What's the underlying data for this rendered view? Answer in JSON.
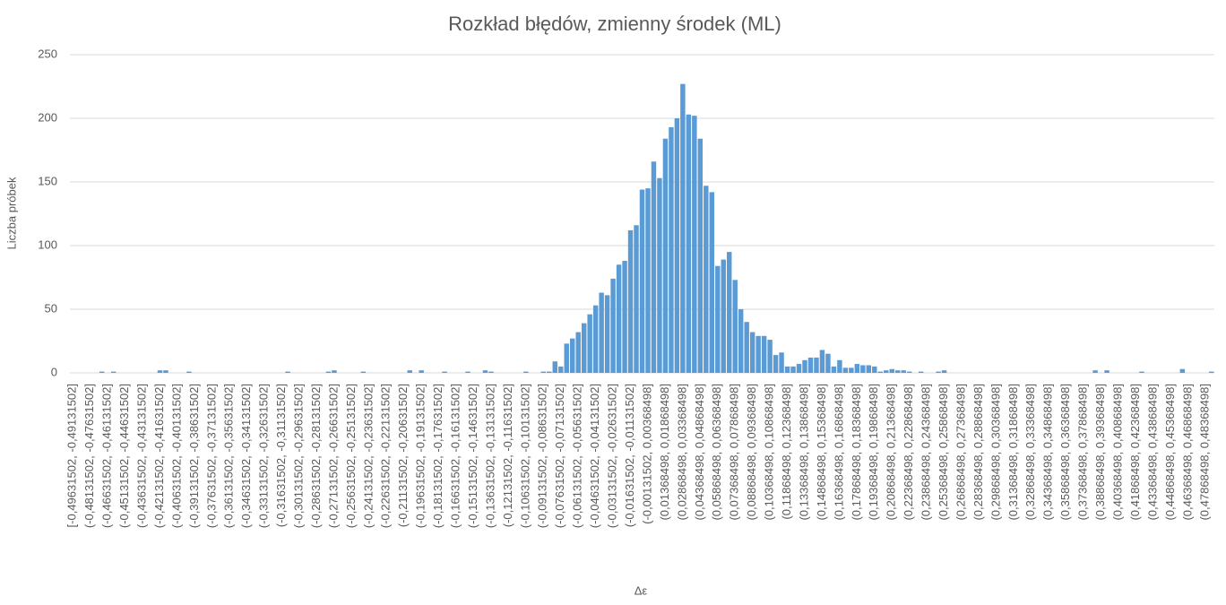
{
  "chart_data": {
    "type": "bar",
    "title": "Rozkład błędów, zmienny środek (ML)",
    "x_label": "Δε",
    "y_label": "Liczba próbek",
    "color": "#5b9bd5",
    "grid": true,
    "ylim": [
      0,
      250
    ],
    "yticks": [
      0,
      50,
      100,
      150,
      200,
      250
    ],
    "categories": [
      "[-0,49631502, -0,49131502]",
      null,
      null,
      "(-0,48131502, -0,47631502]",
      null,
      null,
      "(-0,46631502, -0,46131502]",
      null,
      null,
      "(-0,45131502, -0,44631502]",
      null,
      null,
      "(-0,43631502, -0,43131502]",
      null,
      null,
      "(-0,42131502, -0,41631502]",
      null,
      null,
      "(-0,40631502, -0,40131502]",
      null,
      null,
      "(-0,39131502, -0,38631502]",
      null,
      null,
      "(-0,37631502, -0,37131502]",
      null,
      null,
      "(-0,36131502, -0,35631502]",
      null,
      null,
      "(-0,34631502, -0,34131502]",
      null,
      null,
      "(-0,33131502, -0,32631502]",
      null,
      null,
      "(-0,31631502, -0,31131502]",
      null,
      null,
      "(-0,30131502, -0,29631502]",
      null,
      null,
      "(-0,28631502, -0,28131502]",
      null,
      null,
      "(-0,27131502, -0,26631502]",
      null,
      null,
      "(-0,25631502, -0,25131502]",
      null,
      null,
      "(-0,24131502, -0,23631502]",
      null,
      null,
      "(-0,22631502, -0,22131502]",
      null,
      null,
      "(-0,21131502, -0,20631502]",
      null,
      null,
      "(-0,19631502, -0,19131502]",
      null,
      null,
      "(-0,18131502, -0,17631502]",
      null,
      null,
      "(-0,16631502, -0,16131502]",
      null,
      null,
      "(-0,15131502, -0,14631502]",
      null,
      null,
      "(-0,13631502, -0,13131502]",
      null,
      null,
      "(-0,12131502, -0,11631502]",
      null,
      null,
      "(-0,10631502, -0,10131502]",
      null,
      null,
      "(-0,09131502, -0,08631502]",
      null,
      null,
      "(-0,07631502, -0,07131502]",
      null,
      null,
      "(-0,06131502, -0,05631502]",
      null,
      null,
      "(-0,04631502, -0,04131502]",
      null,
      null,
      "(-0,03131502, -0,02631502]",
      null,
      null,
      "(-0,01631502, -0,01131502]",
      null,
      null,
      "(-0,00131502, 0,00368498]",
      null,
      null,
      "(0,01368498, 0,01868498]",
      null,
      null,
      "(0,02868498, 0,03368498]",
      null,
      null,
      "(0,04368498, 0,04868498]",
      null,
      null,
      "(0,05868498, 0,06368498]",
      null,
      null,
      "(0,07368498, 0,07868498]",
      null,
      null,
      "(0,08868498, 0,09368498]",
      null,
      null,
      "(0,10368498, 0,10868498]",
      null,
      null,
      "(0,11868498, 0,12368498]",
      null,
      null,
      "(0,13368498, 0,13868498]",
      null,
      null,
      "(0,14868498, 0,15368498]",
      null,
      null,
      "(0,16368498, 0,16868498]",
      null,
      null,
      "(0,17868498, 0,18368498]",
      null,
      null,
      "(0,19368498, 0,19868498]",
      null,
      null,
      "(0,20868498, 0,21368498]",
      null,
      null,
      "(0,22368498, 0,22868498]",
      null,
      null,
      "(0,23868498, 0,24368498]",
      null,
      null,
      "(0,25368498, 0,25868498]",
      null,
      null,
      "(0,26868498, 0,27368498]",
      null,
      null,
      "(0,28368498, 0,28868498]",
      null,
      null,
      "(0,29868498, 0,30368498]",
      null,
      null,
      "(0,31368498, 0,31868498]",
      null,
      null,
      "(0,32868498, 0,33368498]",
      null,
      null,
      "(0,34368498, 0,34868498]",
      null,
      null,
      "(0,35868498, 0,36368498]",
      null,
      null,
      "(0,37368498, 0,37868498]",
      null,
      null,
      "(0,38868498, 0,39368498]",
      null,
      null,
      "(0,40368498, 0,40868498]",
      null,
      null,
      "(0,41868498, 0,42368498]",
      null,
      null,
      "(0,43368498, 0,43868498]",
      null,
      null,
      "(0,44868498, 0,45368498]",
      null,
      null,
      "(0,46368498, 0,46868498]",
      null,
      null,
      "(0,47868498, 0,48368498]",
      null
    ],
    "values": [
      0,
      0,
      0,
      0,
      0,
      1,
      0,
      1,
      0,
      0,
      0,
      0,
      0,
      0,
      0,
      2,
      2,
      0,
      0,
      0,
      1,
      0,
      0,
      0,
      0,
      0,
      0,
      0,
      0,
      0,
      0,
      0,
      0,
      0,
      0,
      0,
      0,
      1,
      0,
      0,
      0,
      0,
      0,
      0,
      1,
      2,
      0,
      0,
      0,
      0,
      1,
      0,
      0,
      0,
      0,
      0,
      0,
      0,
      2,
      0,
      2,
      0,
      0,
      0,
      1,
      0,
      0,
      0,
      1,
      0,
      0,
      2,
      1,
      0,
      0,
      0,
      0,
      0,
      1,
      0,
      0,
      1,
      1,
      9,
      5,
      23,
      27,
      32,
      39,
      46,
      53,
      63,
      61,
      74,
      85,
      88,
      112,
      116,
      144,
      145,
      166,
      153,
      184,
      193,
      200,
      227,
      203,
      202,
      184,
      147,
      142,
      84,
      89,
      95,
      73,
      50,
      40,
      32,
      29,
      29,
      26,
      14,
      16,
      5,
      5,
      7,
      10,
      12,
      12,
      18,
      15,
      5,
      10,
      4,
      4,
      7,
      6,
      6,
      5,
      1,
      2,
      3,
      2,
      2,
      1,
      0,
      1,
      0,
      0,
      1,
      2,
      0,
      0,
      0,
      0,
      0,
      0,
      0,
      0,
      0,
      0,
      0,
      0,
      0,
      0,
      0,
      0,
      0,
      0,
      0,
      0,
      0,
      0,
      0,
      0,
      0,
      2,
      0,
      2,
      0,
      0,
      0,
      0,
      0,
      1,
      0,
      0,
      0,
      0,
      0,
      0,
      3,
      0,
      0,
      0,
      0,
      1
    ]
  }
}
